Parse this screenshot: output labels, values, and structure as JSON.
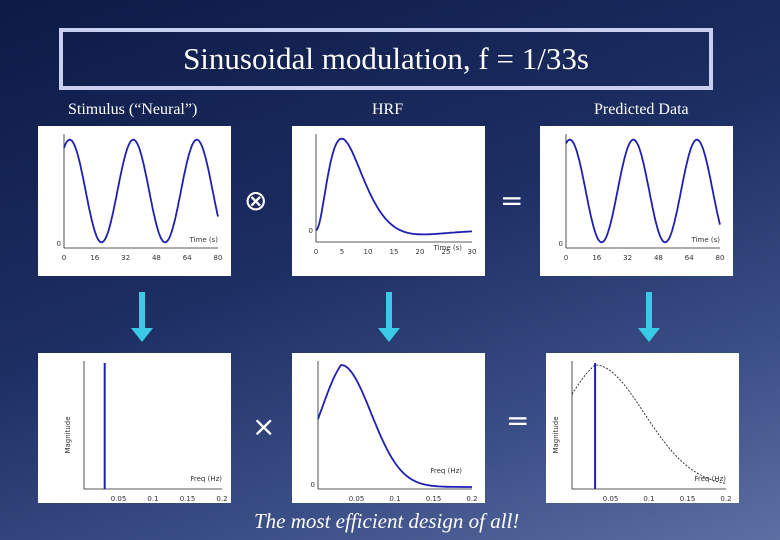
{
  "slide": {
    "title": "Sinusoidal modulation, f = 1/33s",
    "caption": "The most efficient design of all!"
  },
  "labels": {
    "stimulus": "Stimulus (“Neural”)",
    "hrf": "HRF",
    "predicted": "Predicted Data"
  },
  "operators": {
    "convolve": "⊗",
    "equals_top": "=",
    "multiply": "×",
    "equals_bottom": "="
  },
  "colors": {
    "curve": "#1f1fb0",
    "arrow": "#39cbe6",
    "background": "#1d2e63"
  },
  "chart_data": [
    {
      "type": "line",
      "name": "stimulus-time",
      "xlabel": "Time (s)",
      "ylabel": "",
      "x_ticks": [
        "0",
        "16",
        "32",
        "48",
        "64",
        "80"
      ],
      "y_ticks": [
        "0"
      ],
      "xlim": [
        0,
        80
      ],
      "function": "sinusoid",
      "period": 33,
      "periods_shown": 2.4
    },
    {
      "type": "line",
      "name": "hrf-time",
      "xlabel": "Time (s)",
      "ylabel": "",
      "x_ticks": [
        "0",
        "5",
        "10",
        "15",
        "20",
        "25",
        "30"
      ],
      "y_ticks": [
        "0"
      ],
      "xlim": [
        0,
        30
      ],
      "peak_time": 5,
      "undershoot_time": 15
    },
    {
      "type": "line",
      "name": "predicted-time",
      "xlabel": "Time (s)",
      "ylabel": "",
      "x_ticks": [
        "0",
        "16",
        "32",
        "48",
        "64",
        "80"
      ],
      "y_ticks": [
        "0"
      ],
      "xlim": [
        0,
        80
      ],
      "function": "sinusoid",
      "period": 33
    },
    {
      "type": "bar",
      "name": "stimulus-freq",
      "xlabel": "Freq (Hz)",
      "ylabel": "Magnitude",
      "x_ticks": [
        "0.05",
        "0.1",
        "0.15",
        "0.2"
      ],
      "xlim": [
        0,
        0.2
      ],
      "spike_at": 0.03
    },
    {
      "type": "line",
      "name": "hrf-freq",
      "xlabel": "Freq (Hz)",
      "ylabel": "",
      "x_ticks": [
        "0.05",
        "0.1",
        "0.15",
        "0.2"
      ],
      "y_ticks": [
        "0"
      ],
      "xlim": [
        0,
        0.2
      ],
      "peak_at": 0.03
    },
    {
      "type": "line",
      "name": "predicted-freq",
      "xlabel": "Freq (Hz)",
      "ylabel": "Magnitude",
      "x_ticks": [
        "0.05",
        "0.1",
        "0.15",
        "0.2"
      ],
      "xlim": [
        0,
        0.2
      ],
      "spike_at": 0.03
    }
  ]
}
